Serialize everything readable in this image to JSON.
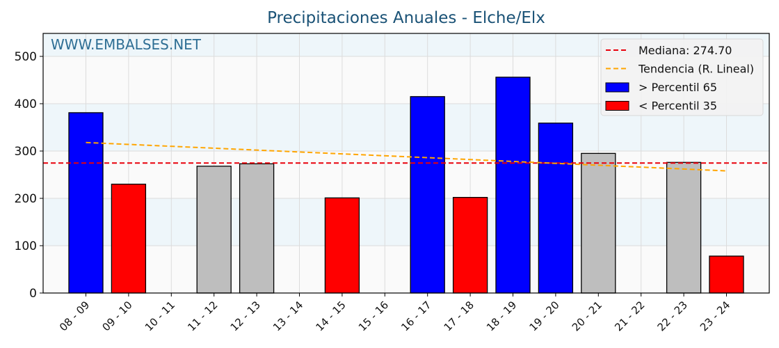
{
  "chart_data": {
    "type": "bar",
    "title": "Precipitaciones Anuales - Elche/Elx",
    "watermark": "WWW.EMBALSES.NET",
    "xlabel": "",
    "ylabel": "",
    "ylim": [
      0,
      550
    ],
    "yticks": [
      0,
      100,
      200,
      300,
      400,
      500
    ],
    "grid": true,
    "legend_position": "upper right",
    "categories": [
      "08 - 09",
      "09 - 10",
      "10 - 11",
      "11 - 12",
      "12 - 13",
      "13 - 14",
      "14 - 15",
      "15 - 16",
      "16 - 17",
      "17 - 18",
      "18 - 19",
      "19 - 20",
      "20 - 21",
      "21 - 22",
      "22 - 23",
      "23 - 24"
    ],
    "values": [
      381,
      230,
      null,
      268,
      273,
      null,
      201,
      null,
      415,
      202,
      456,
      359,
      295,
      null,
      276,
      78
    ],
    "bar_classes": [
      "high",
      "low",
      null,
      "mid",
      "mid",
      null,
      "low",
      null,
      "high",
      "low",
      "high",
      "high",
      "mid",
      null,
      "mid",
      "low"
    ],
    "colors": {
      "high": "#0000ff",
      "low": "#ff0000",
      "mid": "#bebebe",
      "median": "#e8000b",
      "trend": "#ffa500",
      "title": "#1a5276"
    },
    "median": {
      "label": "Mediana: 274.70",
      "value": 274.7
    },
    "trend": {
      "label": "Tendencia (R. Lineal)",
      "start": 318,
      "end": 258
    },
    "legend": [
      {
        "label": "Mediana: 274.70",
        "kind": "line",
        "color": "#e8000b"
      },
      {
        "label": "Tendencia (R. Lineal)",
        "kind": "line",
        "color": "#ffa500"
      },
      {
        "label": " > Percentil 65",
        "kind": "patch",
        "color": "#0000ff"
      },
      {
        "label": " < Percentil 35",
        "kind": "patch",
        "color": "#ff0000"
      }
    ]
  }
}
